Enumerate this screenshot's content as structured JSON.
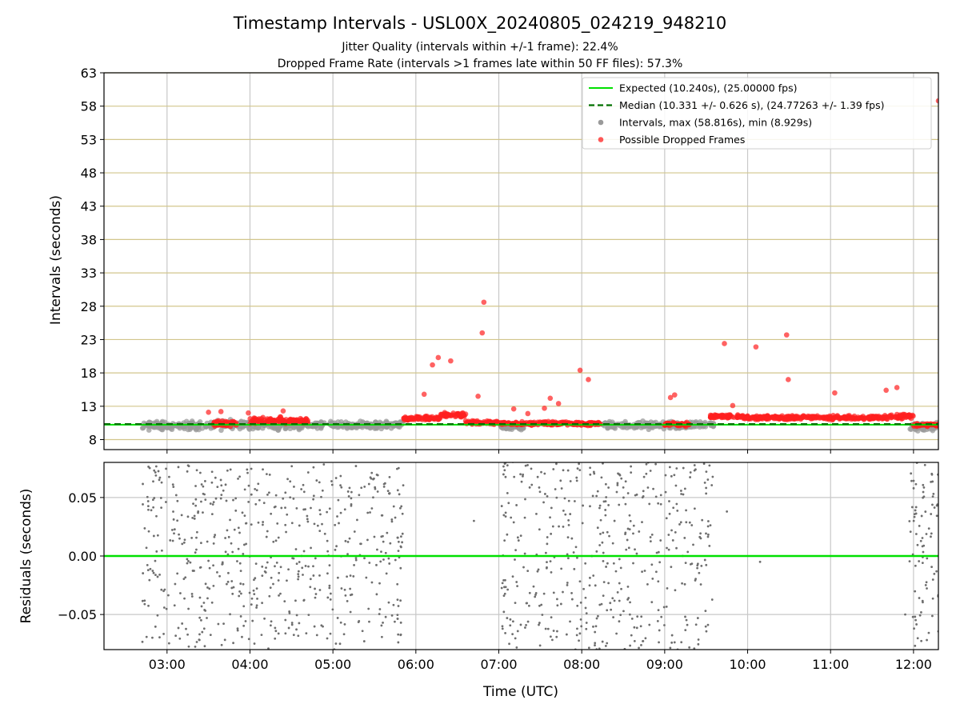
{
  "figure": {
    "title": "Timestamp Intervals - USL00X_20240805_024219_948210",
    "subtitle_1": "Jitter Quality (intervals within +/-1 frame): 22.4%",
    "subtitle_2": "Dropped Frame Rate (intervals >1 frames late within 50 FF files): 57.3%",
    "xlabel": "Time (UTC)"
  },
  "colors": {
    "expected": "#00e000",
    "median": "#007000",
    "intervals": "#9a9a9a",
    "dropped": "#ff2020",
    "hgrid_top": "#d2c68c",
    "vgrid": "#c8c8c8",
    "residual_points": "#6e6e6e",
    "residual_zero": "#00e000"
  },
  "chart_data": [
    {
      "type": "scatter",
      "name": "intervals-panel",
      "ylabel": "Intervals (seconds)",
      "ylim": [
        6.5,
        63
      ],
      "yticks": [
        8,
        13,
        18,
        23,
        28,
        33,
        38,
        43,
        48,
        53,
        58,
        63
      ],
      "xlim_hours": [
        2.24,
        12.3
      ],
      "xticks_hours": [
        3,
        4,
        5,
        6,
        7,
        8,
        9,
        10,
        11,
        12
      ],
      "xtick_labels": [
        "03:00",
        "04:00",
        "05:00",
        "06:00",
        "07:00",
        "08:00",
        "09:00",
        "10:00",
        "11:00",
        "12:00"
      ],
      "grid": true,
      "legend_placement": "top-right",
      "legend": [
        {
          "label": "Expected (10.240s), (25.00000 fps)",
          "kind": "solid-line"
        },
        {
          "label": "Median (10.331 +/- 0.626 s), (24.77263 +/- 1.39 fps)",
          "kind": "dashed-line"
        },
        {
          "label": "Intervals, max (58.816s), min (8.929s)",
          "kind": "gray-dot"
        },
        {
          "label": "Possible Dropped Frames",
          "kind": "red-dot"
        }
      ],
      "expected_value": 10.24,
      "median_value": 10.331,
      "interval_segments": [
        {
          "start": 2.7,
          "end": 3.55,
          "center": 10.1,
          "spread": 0.9
        },
        {
          "start": 3.55,
          "end": 3.98,
          "center": 10.2,
          "spread": 1.0
        },
        {
          "start": 3.98,
          "end": 4.65,
          "center": 10.1,
          "spread": 0.8
        },
        {
          "start": 4.65,
          "end": 5.85,
          "center": 10.2,
          "spread": 0.7
        },
        {
          "start": 7.0,
          "end": 7.3,
          "center": 9.9,
          "spread": 0.6
        },
        {
          "start": 8.25,
          "end": 9.3,
          "center": 10.1,
          "spread": 0.8
        },
        {
          "start": 9.3,
          "end": 9.6,
          "center": 10.2,
          "spread": 0.7
        },
        {
          "start": 11.95,
          "end": 12.3,
          "center": 9.9,
          "spread": 1.0
        }
      ],
      "dropped_segments": [
        {
          "start": 3.55,
          "end": 3.85,
          "center": 10.4,
          "spread": 0.6
        },
        {
          "start": 4.0,
          "end": 4.7,
          "center": 10.8,
          "spread": 0.7
        },
        {
          "start": 5.85,
          "end": 6.3,
          "center": 11.2,
          "spread": 0.4
        },
        {
          "start": 6.3,
          "end": 6.6,
          "center": 11.7,
          "spread": 0.5
        },
        {
          "start": 6.6,
          "end": 7.0,
          "center": 10.6,
          "spread": 0.5
        },
        {
          "start": 7.0,
          "end": 8.25,
          "center": 10.4,
          "spread": 0.4
        },
        {
          "start": 9.0,
          "end": 9.3,
          "center": 10.3,
          "spread": 0.4
        },
        {
          "start": 9.55,
          "end": 9.95,
          "center": 11.5,
          "spread": 0.4
        },
        {
          "start": 9.95,
          "end": 11.7,
          "center": 11.3,
          "spread": 0.4
        },
        {
          "start": 11.7,
          "end": 12.0,
          "center": 11.5,
          "spread": 0.6
        },
        {
          "start": 12.0,
          "end": 12.3,
          "center": 10.2,
          "spread": 0.3
        }
      ],
      "dropped_outliers": [
        {
          "x": 3.5,
          "y": 12.1
        },
        {
          "x": 3.65,
          "y": 12.2
        },
        {
          "x": 3.98,
          "y": 12.0
        },
        {
          "x": 4.4,
          "y": 12.3
        },
        {
          "x": 6.1,
          "y": 14.8
        },
        {
          "x": 6.2,
          "y": 19.2
        },
        {
          "x": 6.27,
          "y": 20.3
        },
        {
          "x": 6.42,
          "y": 19.8
        },
        {
          "x": 6.75,
          "y": 14.5
        },
        {
          "x": 6.8,
          "y": 24.0
        },
        {
          "x": 6.82,
          "y": 28.6
        },
        {
          "x": 7.18,
          "y": 12.6
        },
        {
          "x": 7.35,
          "y": 11.9
        },
        {
          "x": 7.55,
          "y": 12.7
        },
        {
          "x": 7.62,
          "y": 14.2
        },
        {
          "x": 7.72,
          "y": 13.4
        },
        {
          "x": 7.98,
          "y": 18.4
        },
        {
          "x": 8.08,
          "y": 17.0
        },
        {
          "x": 9.07,
          "y": 14.3
        },
        {
          "x": 9.12,
          "y": 14.7
        },
        {
          "x": 9.72,
          "y": 22.4
        },
        {
          "x": 9.82,
          "y": 13.1
        },
        {
          "x": 10.1,
          "y": 21.9
        },
        {
          "x": 10.47,
          "y": 23.7
        },
        {
          "x": 10.49,
          "y": 17.0
        },
        {
          "x": 11.05,
          "y": 15.0
        },
        {
          "x": 11.67,
          "y": 15.4
        },
        {
          "x": 11.8,
          "y": 15.8
        },
        {
          "x": 12.3,
          "y": 58.8
        }
      ]
    },
    {
      "type": "scatter",
      "name": "residuals-panel",
      "ylabel": "Residuals (seconds)",
      "ylim": [
        -0.08,
        0.08
      ],
      "yticks": [
        -0.05,
        0.0,
        0.05
      ],
      "ytick_labels": [
        "−0.05",
        "0.00",
        "0.05"
      ],
      "xlim_hours": [
        2.24,
        12.3
      ],
      "zero_line": 0.0,
      "point_segments": [
        {
          "start": 2.7,
          "end": 5.85,
          "count": 700
        },
        {
          "start": 7.02,
          "end": 9.58,
          "count": 520
        },
        {
          "start": 11.95,
          "end": 12.3,
          "count": 90
        }
      ],
      "isolated_points": [
        {
          "x": 6.7,
          "y": 0.03
        },
        {
          "x": 9.75,
          "y": 0.038
        },
        {
          "x": 10.15,
          "y": -0.005
        },
        {
          "x": 11.9,
          "y": -0.05
        }
      ]
    }
  ]
}
